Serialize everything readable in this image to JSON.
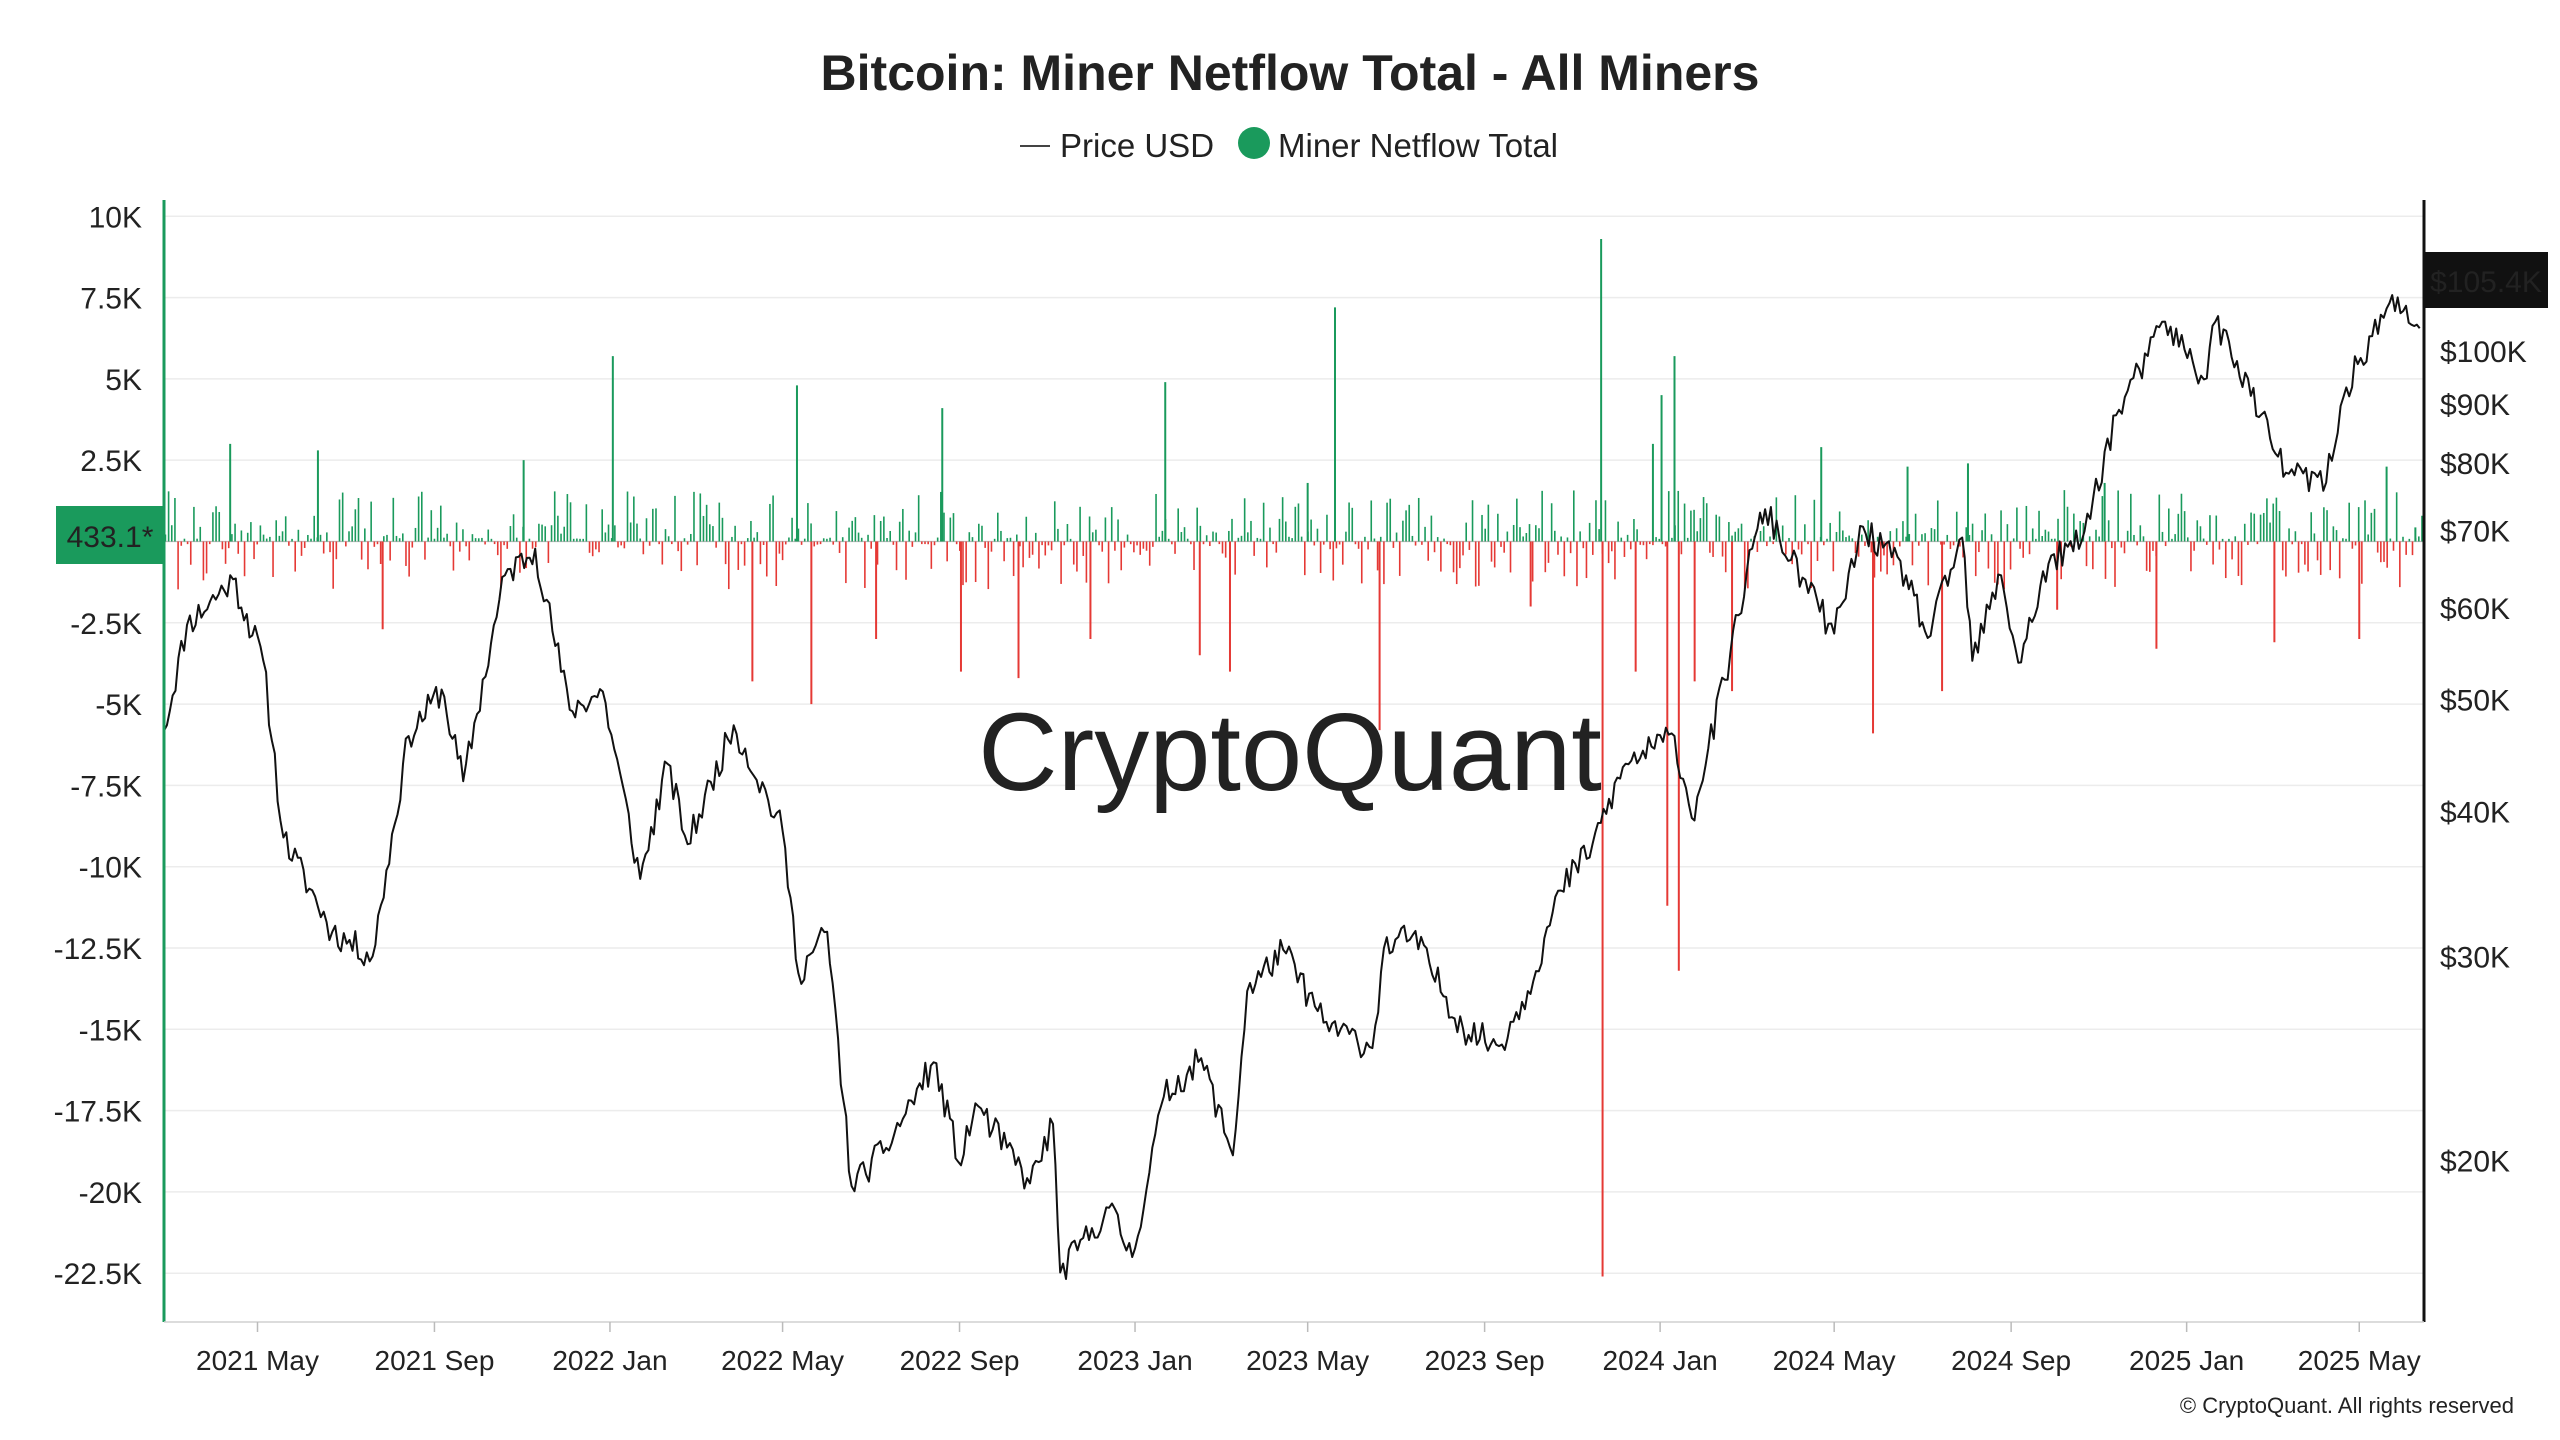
{
  "colors": {
    "inflow": "#1a9a5c",
    "outflow": "#e53935",
    "price": "#111111",
    "grid": "#ececec",
    "left_axis": "#1a9a5c",
    "right_axis": "#111111",
    "watermark": "#d9d9de"
  },
  "watermark": "CryptoQuant",
  "copyright": "© CryptoQuant. All rights reserved",
  "chart_data": {
    "type": "bar+line",
    "title": "Bitcoin: Miner Netflow Total - All Miners",
    "legend_placement": "top-center",
    "grid": true,
    "x_range": [
      "2021-02-25",
      "2025-06-15"
    ],
    "x_tick_labels": [
      "2021 May",
      "2021 Sep",
      "2022 Jan",
      "2022 May",
      "2022 Sep",
      "2023 Jan",
      "2023 May",
      "2023 Sep",
      "2024 Jan",
      "2024 May",
      "2024 Sep",
      "2025 Jan",
      "2025 May"
    ],
    "x_tick_dates": [
      "2021-05-01",
      "2021-09-01",
      "2022-01-01",
      "2022-05-01",
      "2022-09-01",
      "2023-01-01",
      "2023-05-01",
      "2023-09-01",
      "2024-01-01",
      "2024-05-01",
      "2024-09-01",
      "2025-01-01",
      "2025-05-01"
    ],
    "left_axis": {
      "ylim": [
        -24000,
        10500
      ],
      "tick_values": [
        10000,
        7500,
        5000,
        2500,
        -2500,
        -5000,
        -7500,
        -10000,
        -12500,
        -15000,
        -17500,
        -20000,
        -22500
      ],
      "tick_labels": [
        "10K",
        "7.5K",
        "5K",
        "2.5K",
        "-2.5K",
        "-5K",
        "-7.5K",
        "-10K",
        "-12.5K",
        "-15K",
        "-17.5K",
        "-20K",
        "-22.5K"
      ],
      "current_label": "433.1*",
      "current_value": 433.1
    },
    "right_axis": {
      "scale": "log",
      "ylim": [
        14500,
        135000
      ],
      "tick_values": [
        100000,
        90000,
        80000,
        70000,
        60000,
        50000,
        40000,
        30000,
        20000
      ],
      "tick_labels": [
        "$100K",
        "$90K",
        "$80K",
        "$70K",
        "$60K",
        "$50K",
        "$40K",
        "$30K",
        "$20K"
      ],
      "current_label": "$105.4K",
      "current_value": 105400
    },
    "series": [
      {
        "name": "Price USD",
        "type": "line",
        "x": [
          "2021-02-25",
          "2021-03-13",
          "2021-04-14",
          "2021-05-05",
          "2021-05-19",
          "2021-06-22",
          "2021-07-20",
          "2021-08-14",
          "2021-09-06",
          "2021-09-21",
          "2021-10-20",
          "2021-11-10",
          "2021-12-04",
          "2021-12-27",
          "2022-01-22",
          "2022-02-10",
          "2022-02-24",
          "2022-03-28",
          "2022-05-01",
          "2022-05-12",
          "2022-06-01",
          "2022-06-18",
          "2022-07-12",
          "2022-08-14",
          "2022-09-02",
          "2022-09-12",
          "2022-10-20",
          "2022-11-05",
          "2022-11-10",
          "2022-12-14",
          "2022-12-30",
          "2023-01-21",
          "2023-02-16",
          "2023-03-10",
          "2023-03-20",
          "2023-04-14",
          "2023-05-12",
          "2023-06-15",
          "2023-06-23",
          "2023-07-13",
          "2023-08-17",
          "2023-09-11",
          "2023-10-01",
          "2023-10-24",
          "2023-11-15",
          "2023-12-08",
          "2024-01-11",
          "2024-01-23",
          "2024-02-15",
          "2024-03-05",
          "2024-03-14",
          "2024-04-01",
          "2024-05-01",
          "2024-05-21",
          "2024-06-20",
          "2024-07-05",
          "2024-07-29",
          "2024-08-05",
          "2024-08-25",
          "2024-09-06",
          "2024-09-27",
          "2024-10-20",
          "2024-11-13",
          "2024-12-05",
          "2024-12-17",
          "2025-01-13",
          "2025-01-21",
          "2025-02-05",
          "2025-02-28",
          "2025-03-11",
          "2025-04-08",
          "2025-04-22",
          "2025-05-10",
          "2025-05-22",
          "2025-06-12"
        ],
        "values": [
          47000,
          58000,
          63500,
          54000,
          38000,
          31500,
          30000,
          46500,
          51000,
          42500,
          64000,
          67500,
          49000,
          50800,
          35000,
          44000,
          37500,
          47500,
          38500,
          29000,
          31500,
          19000,
          20500,
          24300,
          19800,
          22400,
          19100,
          21500,
          16000,
          18200,
          16500,
          22700,
          24500,
          20200,
          28000,
          30400,
          26300,
          25000,
          30500,
          31300,
          26000,
          25100,
          28000,
          34200,
          37500,
          44000,
          46500,
          39500,
          52000,
          67500,
          73000,
          66000,
          57000,
          70500,
          64000,
          56500,
          69000,
          54000,
          64000,
          53800,
          65500,
          68500,
          88000,
          99000,
          106000,
          94500,
          106000,
          98000,
          84000,
          78500,
          77000,
          93000,
          103000,
          110000,
          104600
        ]
      },
      {
        "name": "Miner Netflow Total",
        "type": "bar",
        "positive_color": "#1a9a5c",
        "negative_color": "#e53935",
        "x": [
          "2021-04-12",
          "2021-06-12",
          "2021-07-27",
          "2021-11-02",
          "2022-01-03",
          "2022-04-10",
          "2022-05-11",
          "2022-05-21",
          "2022-07-05",
          "2022-08-20",
          "2022-09-02",
          "2022-10-12",
          "2022-12-01",
          "2023-01-22",
          "2023-02-15",
          "2023-03-08",
          "2023-05-01",
          "2023-05-20",
          "2023-06-20",
          "2023-10-03",
          "2023-11-21",
          "2023-11-22",
          "2023-12-15",
          "2023-12-27",
          "2024-01-02",
          "2024-01-06",
          "2024-01-11",
          "2024-01-14",
          "2024-01-25",
          "2024-02-20",
          "2024-04-22",
          "2024-05-28",
          "2024-06-21",
          "2024-07-15",
          "2024-08-02",
          "2024-10-03",
          "2024-11-05",
          "2024-12-11",
          "2025-03-03",
          "2025-05-01",
          "2025-05-20",
          "2025-06-09"
        ],
        "values": [
          3000,
          2800,
          -2700,
          2500,
          5700,
          -4300,
          4800,
          -5000,
          -3000,
          4100,
          -4000,
          -4200,
          -3000,
          4900,
          -3500,
          -4000,
          1800,
          7200,
          -5800,
          -2000,
          9300,
          -22600,
          -4000,
          3000,
          4500,
          -11200,
          5700,
          -13200,
          -4300,
          -4600,
          2900,
          -5900,
          2300,
          -4600,
          2400,
          -2100,
          1800,
          -3300,
          -3100,
          -3000,
          2300,
          433.1
        ]
      }
    ]
  }
}
